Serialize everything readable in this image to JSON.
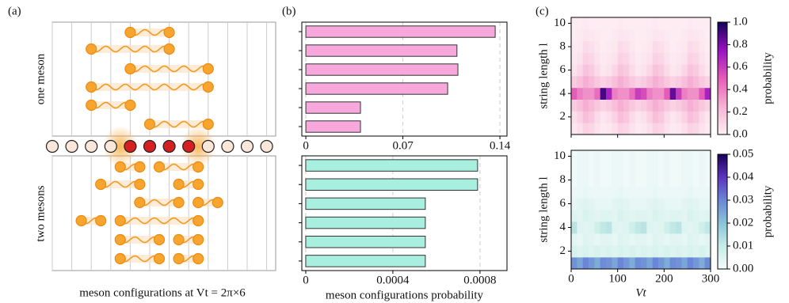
{
  "panel_a": {
    "label": "(a)",
    "top_label": "one meson",
    "bottom_label": "two mesons",
    "caption": "meson configurations at Vt = 2π×6"
  },
  "chart_data": [
    {
      "type": "barh",
      "panel_label": "(b)",
      "categories": [
        null,
        null,
        null,
        null,
        null,
        null
      ],
      "values": [
        0.1366,
        0.109,
        0.1097,
        0.1023,
        0.0394,
        0.0394
      ],
      "color": "#f7a8dc",
      "xlim": [
        -0.0029,
        0.1451
      ],
      "xticks": [
        0,
        0.07,
        0.14
      ],
      "grid": true
    },
    {
      "type": "barh",
      "xlabel": "meson configurations probability",
      "categories": [
        null,
        null,
        null,
        null,
        null,
        null
      ],
      "values": [
        0.000789,
        0.000789,
        0.000549,
        0.000549,
        0.000549,
        0.000549
      ],
      "color": "#a8efe0",
      "xlim": [
        -1.8e-05,
        0.000924
      ],
      "xticks": [
        0,
        0.0004,
        0.0008
      ],
      "grid": true
    },
    {
      "type": "heatmap",
      "panel_label": "(c)",
      "ylabel": "string length l",
      "xlim": [
        0,
        300
      ],
      "ylim": [
        0.5,
        10.5
      ],
      "xticks": [
        0,
        100,
        200,
        300
      ],
      "show_xtick_labels": false,
      "yticks": [
        2,
        4,
        6,
        8,
        10
      ],
      "xbins": [
        0,
        12.5,
        25,
        37.5,
        50,
        62.5,
        75,
        87.5,
        100,
        112.5,
        125,
        137.5,
        150,
        162.5,
        175,
        187.5,
        200,
        212.5,
        225,
        237.5,
        250,
        262.5,
        275,
        287.5,
        300
      ],
      "ybins": [
        0.5,
        1.5,
        2.5,
        3.5,
        4.5,
        5.5,
        6.5,
        7.5,
        8.5,
        9.5,
        10.5
      ],
      "z": [
        [
          0.03,
          0.06,
          0.12,
          0.1,
          0.05,
          0.02,
          0.03,
          0.06,
          0.12,
          0.1,
          0.05,
          0.02,
          0.03,
          0.06,
          0.12,
          0.1,
          0.05,
          0.02,
          0.03,
          0.06,
          0.12,
          0.1,
          0.05,
          0.02
        ],
        [
          0.06,
          0.12,
          0.2,
          0.16,
          0.08,
          0.04,
          0.06,
          0.12,
          0.2,
          0.16,
          0.08,
          0.04,
          0.06,
          0.12,
          0.2,
          0.16,
          0.08,
          0.04,
          0.06,
          0.12,
          0.2,
          0.16,
          0.08,
          0.04
        ],
        [
          0.15,
          0.2,
          0.26,
          0.22,
          0.16,
          0.12,
          0.15,
          0.2,
          0.26,
          0.22,
          0.16,
          0.12,
          0.15,
          0.2,
          0.26,
          0.22,
          0.16,
          0.12,
          0.15,
          0.2,
          0.26,
          0.22,
          0.16,
          0.12
        ],
        [
          0.5,
          0.4,
          0.35,
          0.35,
          0.45,
          0.9,
          0.7,
          0.4,
          0.35,
          0.35,
          0.45,
          0.6,
          0.55,
          0.4,
          0.35,
          0.35,
          0.5,
          0.85,
          0.6,
          0.4,
          0.35,
          0.35,
          0.5,
          0.7
        ],
        [
          0.15,
          0.2,
          0.26,
          0.22,
          0.16,
          0.12,
          0.15,
          0.2,
          0.26,
          0.22,
          0.16,
          0.12,
          0.15,
          0.2,
          0.26,
          0.22,
          0.16,
          0.12,
          0.15,
          0.2,
          0.26,
          0.22,
          0.16,
          0.12
        ],
        [
          0.05,
          0.1,
          0.18,
          0.15,
          0.08,
          0.03,
          0.05,
          0.1,
          0.18,
          0.15,
          0.08,
          0.03,
          0.05,
          0.1,
          0.18,
          0.15,
          0.08,
          0.03,
          0.05,
          0.1,
          0.18,
          0.15,
          0.08,
          0.03
        ],
        [
          0.03,
          0.05,
          0.12,
          0.1,
          0.05,
          0.02,
          0.03,
          0.05,
          0.12,
          0.1,
          0.05,
          0.02,
          0.03,
          0.05,
          0.12,
          0.1,
          0.05,
          0.02,
          0.03,
          0.05,
          0.12,
          0.1,
          0.05,
          0.02
        ],
        [
          0.02,
          0.03,
          0.08,
          0.06,
          0.03,
          0.01,
          0.02,
          0.03,
          0.08,
          0.06,
          0.03,
          0.01,
          0.02,
          0.03,
          0.08,
          0.06,
          0.03,
          0.01,
          0.02,
          0.03,
          0.08,
          0.06,
          0.03,
          0.01
        ],
        [
          0.01,
          0.02,
          0.04,
          0.03,
          0.02,
          0.01,
          0.01,
          0.02,
          0.04,
          0.03,
          0.02,
          0.01,
          0.01,
          0.02,
          0.04,
          0.03,
          0.02,
          0.01,
          0.01,
          0.02,
          0.04,
          0.03,
          0.02,
          0.01
        ],
        [
          0.01,
          0.01,
          0.02,
          0.01,
          0.01,
          0.01,
          0.01,
          0.01,
          0.02,
          0.01,
          0.01,
          0.01,
          0.01,
          0.01,
          0.02,
          0.01,
          0.01,
          0.01,
          0.01,
          0.01,
          0.02,
          0.01,
          0.01,
          0.01
        ]
      ],
      "colorbar": {
        "label": "probability",
        "lim": [
          0,
          1
        ],
        "ticks": [
          {
            "value": 0,
            "label": "0.0"
          },
          {
            "value": 0.2,
            "label": "0.2"
          },
          {
            "value": 0.4,
            "label": "0.4"
          },
          {
            "value": 0.6,
            "label": "0.6"
          },
          {
            "value": 0.8,
            "label": "0.8"
          },
          {
            "value": 1,
            "label": "1.0"
          }
        ],
        "colors": [
          "#fdeef3",
          "#f6b3d4",
          "#e55bb8",
          "#9a12c2",
          "#12005a"
        ]
      }
    },
    {
      "type": "heatmap",
      "ylabel": "string length l",
      "xlabel": "Vt",
      "xlim": [
        0,
        300
      ],
      "ylim": [
        0.5,
        10.5
      ],
      "xticks": [
        0,
        100,
        200,
        300
      ],
      "show_xtick_labels": true,
      "yticks": [
        2,
        4,
        6,
        8,
        10
      ],
      "xbins": [
        0,
        12.5,
        25,
        37.5,
        50,
        62.5,
        75,
        87.5,
        100,
        112.5,
        125,
        137.5,
        150,
        162.5,
        175,
        187.5,
        200,
        212.5,
        225,
        237.5,
        250,
        262.5,
        275,
        287.5,
        300
      ],
      "ybins": [
        0.5,
        1.5,
        2.5,
        3.5,
        4.5,
        5.5,
        6.5,
        7.5,
        8.5,
        9.5,
        10.5
      ],
      "z": [
        [
          0.028,
          0.025,
          0.03,
          0.027,
          0.024,
          0.029,
          0.028,
          0.025,
          0.03,
          0.027,
          0.024,
          0.029,
          0.028,
          0.025,
          0.03,
          0.027,
          0.024,
          0.029,
          0.028,
          0.025,
          0.03,
          0.027,
          0.024,
          0.029
        ],
        [
          0.006,
          0.005,
          0.006,
          0.005,
          0.006,
          0.005,
          0.006,
          0.005,
          0.006,
          0.005,
          0.006,
          0.005,
          0.006,
          0.005,
          0.006,
          0.005,
          0.006,
          0.005,
          0.006,
          0.005,
          0.006,
          0.005,
          0.006,
          0.005
        ],
        [
          0.004,
          0.003,
          0.005,
          0.004,
          0.003,
          0.004,
          0.004,
          0.003,
          0.005,
          0.004,
          0.003,
          0.004,
          0.004,
          0.003,
          0.005,
          0.004,
          0.003,
          0.004,
          0.004,
          0.003,
          0.005,
          0.004,
          0.003,
          0.004
        ],
        [
          0.012,
          0.005,
          0.004,
          0.005,
          0.008,
          0.011,
          0.012,
          0.005,
          0.004,
          0.005,
          0.008,
          0.011,
          0.012,
          0.005,
          0.004,
          0.005,
          0.008,
          0.011,
          0.012,
          0.005,
          0.004,
          0.005,
          0.008,
          0.011
        ],
        [
          0.005,
          0.004,
          0.006,
          0.005,
          0.004,
          0.005,
          0.005,
          0.004,
          0.006,
          0.005,
          0.004,
          0.005,
          0.005,
          0.004,
          0.006,
          0.005,
          0.004,
          0.005,
          0.005,
          0.004,
          0.006,
          0.005,
          0.004,
          0.005
        ],
        [
          0.003,
          0.004,
          0.005,
          0.004,
          0.003,
          0.003,
          0.003,
          0.004,
          0.005,
          0.004,
          0.003,
          0.003,
          0.003,
          0.004,
          0.005,
          0.004,
          0.003,
          0.003,
          0.003,
          0.004,
          0.005,
          0.004,
          0.003,
          0.003
        ],
        [
          0.002,
          0.002,
          0.003,
          0.002,
          0.002,
          0.002,
          0.002,
          0.002,
          0.003,
          0.002,
          0.002,
          0.002,
          0.002,
          0.002,
          0.003,
          0.002,
          0.002,
          0.002,
          0.002,
          0.002,
          0.003,
          0.002,
          0.002,
          0.002
        ],
        [
          0.001,
          0.002,
          0.002,
          0.001,
          0.002,
          0.001,
          0.001,
          0.002,
          0.002,
          0.001,
          0.002,
          0.001,
          0.001,
          0.002,
          0.002,
          0.001,
          0.002,
          0.001,
          0.001,
          0.002,
          0.002,
          0.001,
          0.002,
          0.001
        ],
        [
          0.001,
          0.002,
          0.002,
          0.001,
          0.002,
          0.001,
          0.001,
          0.002,
          0.002,
          0.001,
          0.002,
          0.001,
          0.001,
          0.002,
          0.002,
          0.001,
          0.002,
          0.001,
          0.001,
          0.002,
          0.002,
          0.001,
          0.002,
          0.001
        ],
        [
          0.001,
          0.002,
          0.002,
          0.001,
          0.002,
          0.001,
          0.001,
          0.002,
          0.002,
          0.001,
          0.002,
          0.001,
          0.001,
          0.002,
          0.002,
          0.001,
          0.002,
          0.001,
          0.001,
          0.002,
          0.002,
          0.001,
          0.002,
          0.001
        ]
      ],
      "colorbar": {
        "label": "probability",
        "lim": [
          0,
          0.05
        ],
        "ticks": [
          {
            "value": 0,
            "label": "0.00"
          },
          {
            "value": 0.01,
            "label": "0.01"
          },
          {
            "value": 0.02,
            "label": "0.02"
          },
          {
            "value": 0.03,
            "label": "0.03"
          },
          {
            "value": 0.04,
            "label": "0.04"
          },
          {
            "value": 0.05,
            "label": "0.05"
          }
        ],
        "colors": [
          "#f4fbfb",
          "#c6ece6",
          "#8cc3da",
          "#6a86d6",
          "#5a34bf",
          "#1a0058"
        ]
      }
    }
  ]
}
